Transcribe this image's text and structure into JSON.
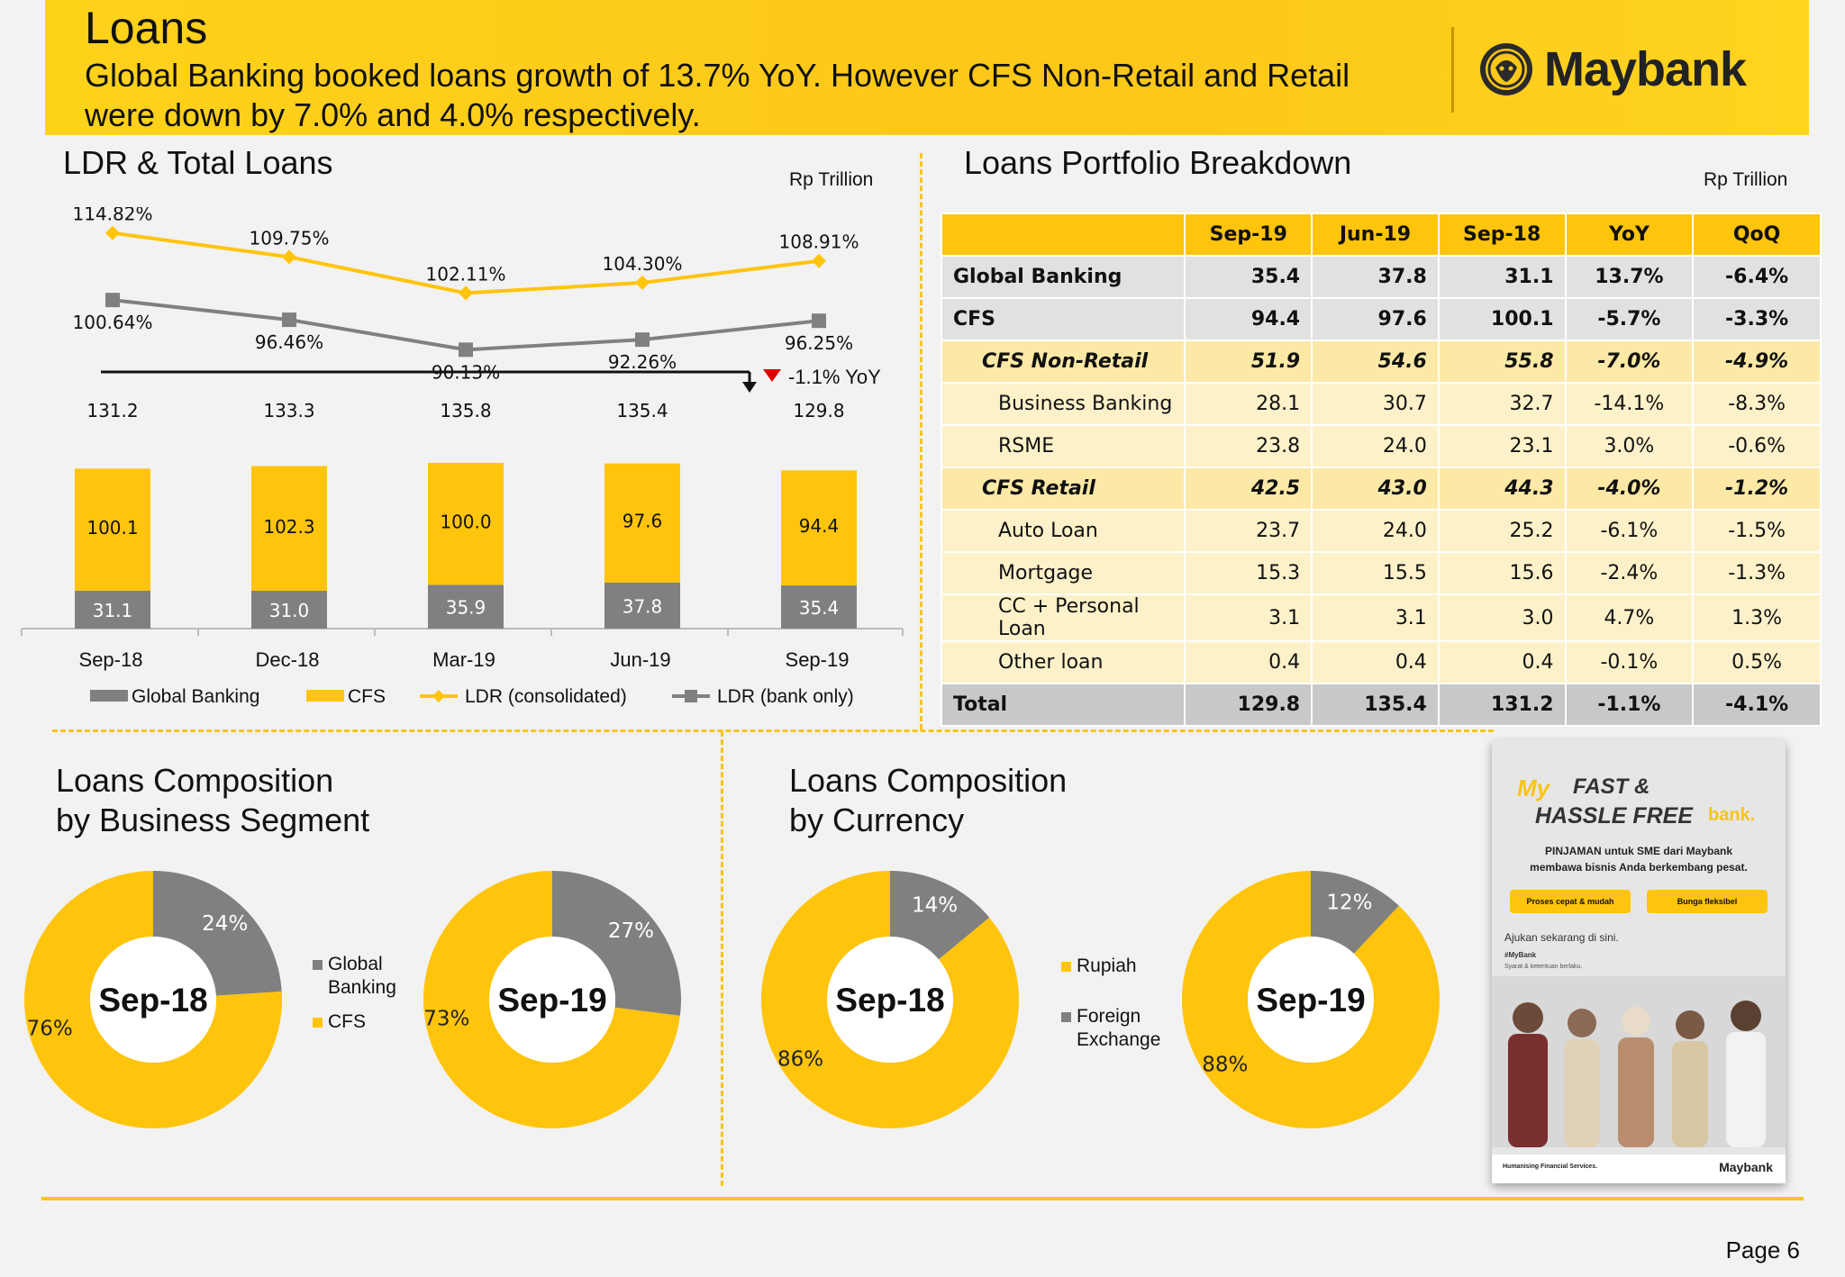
{
  "header": {
    "title": "Loans",
    "subtitle": "Global Banking booked loans growth of 13.7% YoY. However CFS Non-Retail and Retail were down by 7.0% and 4.0% respectively.",
    "brand": "Maybank"
  },
  "colors": {
    "yellow": "#ffc40c",
    "gray": "#808080",
    "banner": "#fcc719"
  },
  "ldr_section": {
    "title": "LDR & Total Loans",
    "unit": "Rp Trillion",
    "yoy_note": "-1.1% YoY"
  },
  "portfolio_section": {
    "title": "Loans Portfolio Breakdown",
    "unit": "Rp Trillion"
  },
  "segment_section": {
    "title_line1": "Loans Composition",
    "title_line2": "by Business Segment"
  },
  "currency_section": {
    "title_line1": "Loans Composition",
    "title_line2": "by Currency"
  },
  "portfolio_table": {
    "headers": [
      "",
      "Sep-19",
      "Jun-19",
      "Sep-18",
      "YoY",
      "QoQ"
    ],
    "rows": [
      {
        "style": "main",
        "cells": [
          "Global Banking",
          "35.4",
          "37.8",
          "31.1",
          "13.7%",
          "-6.4%"
        ]
      },
      {
        "style": "main",
        "cells": [
          "CFS",
          "94.4",
          "97.6",
          "100.1",
          "-5.7%",
          "-3.3%"
        ]
      },
      {
        "style": "sub",
        "cells": [
          "CFS Non-Retail",
          "51.9",
          "54.6",
          "55.8",
          "-7.0%",
          "-4.9%"
        ]
      },
      {
        "style": "item",
        "cells": [
          "Business Banking",
          "28.1",
          "30.7",
          "32.7",
          "-14.1%",
          "-8.3%"
        ]
      },
      {
        "style": "item",
        "cells": [
          "RSME",
          "23.8",
          "24.0",
          "23.1",
          "3.0%",
          "-0.6%"
        ]
      },
      {
        "style": "sub",
        "cells": [
          "CFS Retail",
          "42.5",
          "43.0",
          "44.3",
          "-4.0%",
          "-1.2%"
        ]
      },
      {
        "style": "item",
        "cells": [
          "Auto Loan",
          "23.7",
          "24.0",
          "25.2",
          "-6.1%",
          "-1.5%"
        ]
      },
      {
        "style": "item",
        "cells": [
          "Mortgage",
          "15.3",
          "15.5",
          "15.6",
          "-2.4%",
          "-1.3%"
        ]
      },
      {
        "style": "item",
        "cells": [
          "CC + Personal Loan",
          "3.1",
          "3.1",
          "3.0",
          "4.7%",
          "1.3%"
        ]
      },
      {
        "style": "item",
        "cells": [
          "Other loan",
          "0.4",
          "0.4",
          "0.4",
          "-0.1%",
          "0.5%"
        ]
      },
      {
        "style": "total",
        "cells": [
          "Total",
          "129.8",
          "135.4",
          "131.2",
          "-1.1%",
          "-4.1%"
        ]
      }
    ]
  },
  "chart_data": [
    {
      "type": "bar",
      "stacked": true,
      "categories": [
        "Sep-18",
        "Dec-18",
        "Mar-19",
        "Jun-19",
        "Sep-19"
      ],
      "series": [
        {
          "name": "Global Banking",
          "values": [
            31.1,
            31.0,
            35.9,
            37.8,
            35.4
          ],
          "color": "#808080"
        },
        {
          "name": "CFS",
          "values": [
            100.1,
            102.3,
            100.0,
            97.6,
            94.4
          ],
          "color": "#ffc40c"
        }
      ],
      "totals": [
        131.2,
        133.3,
        135.8,
        135.4,
        129.8
      ],
      "lines": [
        {
          "name": "LDR (consolidated)",
          "values": [
            114.82,
            109.75,
            102.11,
            104.3,
            108.91
          ],
          "labels": [
            "114.82%",
            "109.75%",
            "102.11%",
            "104.30%",
            "108.91%"
          ],
          "color": "#ffc40c"
        },
        {
          "name": "LDR (bank only)",
          "values": [
            100.64,
            96.46,
            90.13,
            92.26,
            96.25
          ],
          "labels": [
            "100.64%",
            "96.46%",
            "90.13%",
            "92.26%",
            "96.25%"
          ],
          "color": "#808080"
        }
      ],
      "legend": "bottom"
    },
    {
      "type": "pie",
      "donut": true,
      "center_label": "Sep-18",
      "slices": [
        {
          "name": "Global Banking",
          "value": 24,
          "label": "24%",
          "color": "#808080"
        },
        {
          "name": "CFS",
          "value": 76,
          "label": "76%",
          "color": "#ffc40c"
        }
      ]
    },
    {
      "type": "pie",
      "donut": true,
      "center_label": "Sep-19",
      "slices": [
        {
          "name": "Global Banking",
          "value": 27,
          "label": "27%",
          "color": "#808080"
        },
        {
          "name": "CFS",
          "value": 73,
          "label": "73%",
          "color": "#ffc40c"
        }
      ]
    },
    {
      "type": "pie",
      "donut": true,
      "center_label": "Sep-18",
      "slices": [
        {
          "name": "Foreign Exchange",
          "value": 14,
          "label": "14%",
          "color": "#808080"
        },
        {
          "name": "Rupiah",
          "value": 86,
          "label": "86%",
          "color": "#ffc40c"
        }
      ]
    },
    {
      "type": "pie",
      "donut": true,
      "center_label": "Sep-19",
      "slices": [
        {
          "name": "Foreign Exchange",
          "value": 12,
          "label": "12%",
          "color": "#808080"
        },
        {
          "name": "Rupiah",
          "value": 88,
          "label": "88%",
          "color": "#ffc40c"
        }
      ]
    }
  ],
  "segment_legend": {
    "global_l1": "Global",
    "global_l2": "Banking",
    "cfs": "CFS"
  },
  "currency_legend": {
    "rupiah": "Rupiah",
    "fx_l1": "Foreign",
    "fx_l2": "Exchange"
  },
  "ad": {
    "my": "My",
    "headline1": "FAST &",
    "headline2": "HASSLE FREE",
    "bank": "bank.",
    "line1": "PINJAMAN untuk SME dari Maybank",
    "line2": "membawa bisnis Anda berkembang pesat.",
    "pill1": "Proses cepat & mudah",
    "pill2": "Bunga fleksibel",
    "cta": "Ajukan sekarang di sini.",
    "tag": "#MyBank",
    "fine": "Syarat & ketentuan berlaku.",
    "footer": "Humanising Financial Services.",
    "brand": "Maybank"
  },
  "footer": {
    "page": "Page 6"
  }
}
